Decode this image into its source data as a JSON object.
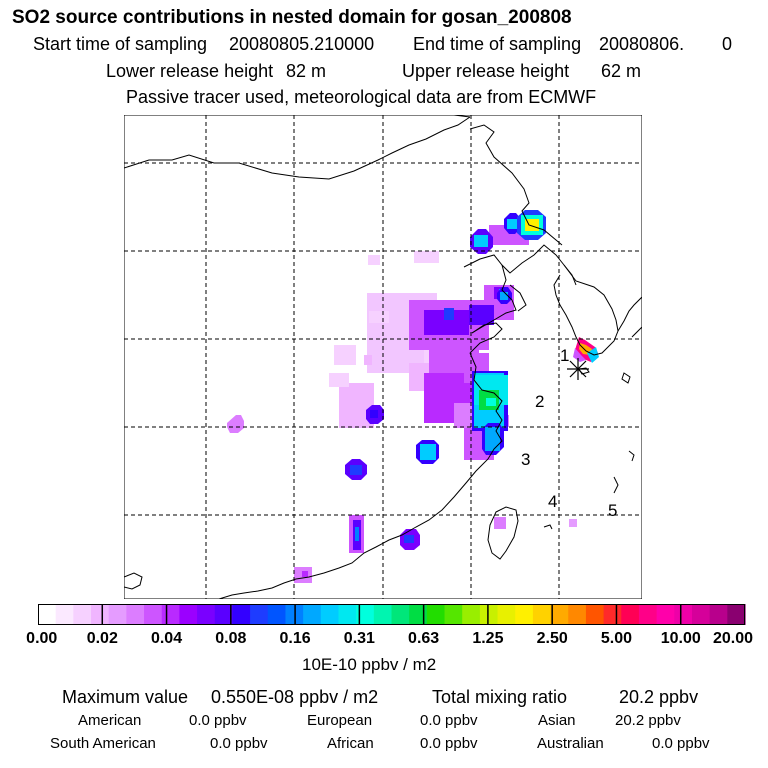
{
  "header": {
    "title": "SO2 source contributions in nested domain for gosan_200808",
    "start_label": "Start time of sampling",
    "start_value": "20080805.210000",
    "end_label": "End time of sampling",
    "end_value": "20080806.",
    "end_suffix": "0",
    "lower_label": "Lower release height",
    "lower_value": "82 m",
    "upper_label": "Upper release height",
    "upper_value": "62 m",
    "note": "Passive tracer used, meteorological data are from ECMWF"
  },
  "map": {
    "region_labels": [
      "1",
      "2",
      "3",
      "4",
      "5"
    ],
    "station_marker": "receptor-asterisk"
  },
  "colorbar": {
    "tick_labels": [
      "0.00",
      "0.02",
      "0.04",
      "0.08",
      "0.16",
      "0.31",
      "0.63",
      "1.25",
      "2.50",
      "5.00",
      "10.00",
      "20.00"
    ],
    "units": "10E-10 ppbv / m2",
    "colors": [
      "#ffffff",
      "#fbe9ff",
      "#f6d1ff",
      "#f0b5ff",
      "#e59cff",
      "#dc7dff",
      "#cd55ff",
      "#b92aff",
      "#9b00ff",
      "#7a00ff",
      "#5a00ff",
      "#3300ff",
      "#1e3cff",
      "#0055ff",
      "#0080ff",
      "#00a8ff",
      "#00ccff",
      "#00e8f0",
      "#00ffdd",
      "#00f5b0",
      "#00e67a",
      "#00dd44",
      "#22dd00",
      "#55e600",
      "#99ee00",
      "#c8f000",
      "#e8f000",
      "#fff000",
      "#ffd200",
      "#ffaa00",
      "#ff8800",
      "#ff5500",
      "#ff2a2a",
      "#ff0055",
      "#ff0088",
      "#ff00aa",
      "#ee00a8",
      "#d5009a",
      "#b8008c",
      "#8a0070"
    ]
  },
  "stats": {
    "max_label": "Maximum value",
    "max_value": "0.550E-08 ppbv / m2",
    "total_label": "Total mixing ratio",
    "total_value": "20.2 ppbv",
    "regions": [
      {
        "name": "American",
        "value": "0.0 ppbv"
      },
      {
        "name": "European",
        "value": "0.0 ppbv"
      },
      {
        "name": "Asian",
        "value": "20.2 ppbv"
      },
      {
        "name": "South American",
        "value": "0.0 ppbv"
      },
      {
        "name": "African",
        "value": "0.0 ppbv"
      },
      {
        "name": "Australian",
        "value": "0.0 ppbv"
      }
    ]
  }
}
